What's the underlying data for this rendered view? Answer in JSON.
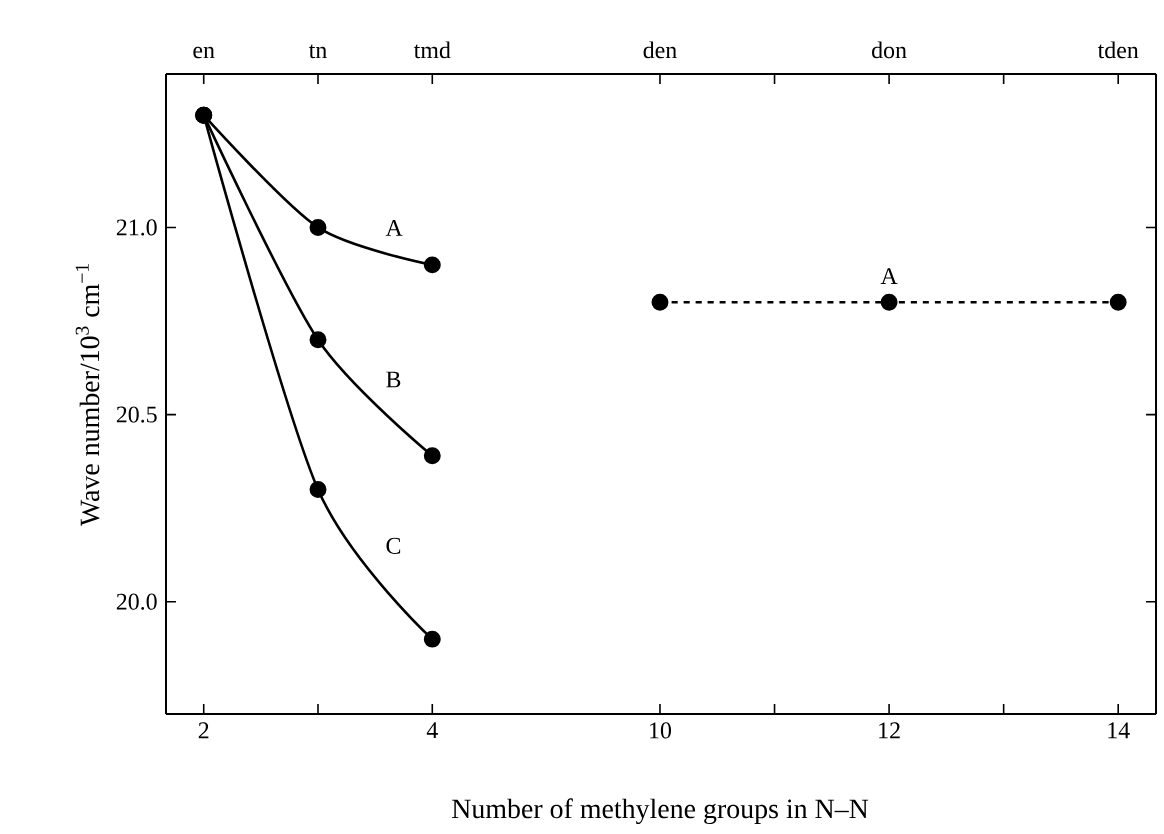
{
  "chart_data": [
    {
      "type": "line",
      "xlabel": "Number of methylene groups in N–N",
      "ylabel": "Wave number/10$^{3}$ cm$^{−1}$",
      "x": [
        2,
        3,
        4
      ],
      "series": [
        {
          "name": "A",
          "color": "#000000",
          "values": [
            21.3,
            21.0,
            20.9
          ]
        },
        {
          "name": "B",
          "color": "#000000",
          "values": [
            21.3,
            20.7,
            20.39
          ]
        },
        {
          "name": "C",
          "color": "#000000",
          "values": [
            21.3,
            20.3,
            19.9
          ]
        }
      ],
      "xlim": [
        1.67,
        5.03
      ],
      "xticks": [
        2,
        {
          "value": 3,
          "label": null
        },
        4
      ],
      "annotations": [
        {
          "text": "en",
          "x": 2
        },
        {
          "text": "tn",
          "x": 3
        },
        {
          "text": "tmd",
          "x": 4
        }
      ],
      "ylim": [
        19.7,
        21.41
      ],
      "yticks": [
        {
          "value": 20,
          "label": "20.0"
        },
        20.5,
        {
          "value": 21,
          "label": "21.0"
        }
      ],
      "marker": "circle",
      "line_style": "solid"
    },
    {
      "type": "line",
      "x": [
        10,
        12,
        14
      ],
      "series": [
        {
          "name": "A",
          "color": "#000000",
          "values": [
            20.8,
            20.8,
            20.8
          ]
        }
      ],
      "xlim": [
        9.04,
        14.33
      ],
      "xticks": [
        10,
        {
          "value": 11,
          "label": null
        },
        12,
        {
          "value": 13,
          "label": null
        },
        14
      ],
      "annotations": [
        {
          "text": "den",
          "x": 10
        },
        {
          "text": "don",
          "x": 12
        },
        {
          "text": "tden",
          "x": 14
        }
      ],
      "ylim": [
        19.7,
        21.41
      ],
      "yticks": [
        20,
        20.5,
        21
      ],
      "tick_labels": "x",
      "marker": "circle",
      "line_style": "dashed"
    }
  ]
}
